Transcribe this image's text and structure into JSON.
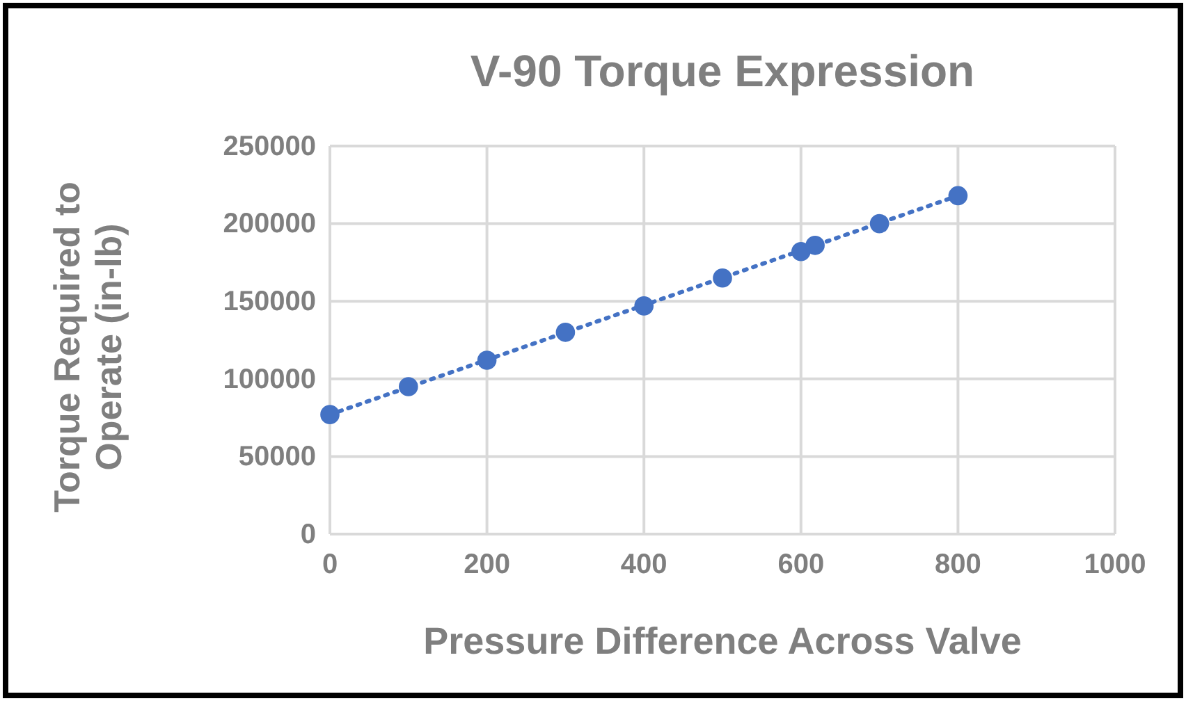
{
  "chart_data": {
    "type": "scatter",
    "title": "V-90 Torque Expression",
    "xlabel": "Pressure Difference Across Valve",
    "ylabel": "Torque Required to Operate (in-lb)",
    "x": [
      0,
      100,
      200,
      300,
      400,
      500,
      600,
      618,
      700,
      800
    ],
    "series": [
      {
        "color": "#4472c4",
        "marker": "circle",
        "values": [
          77000,
          95000,
          112000,
          130000,
          147000,
          165000,
          182000,
          186000,
          200000,
          218000
        ]
      },
      {
        "type": "line",
        "color": "#4472c4",
        "line_style": "dotted",
        "x": [
          0,
          800
        ],
        "values": [
          77000,
          218000
        ]
      }
    ],
    "xlim": [
      0,
      1000
    ],
    "xticks": [
      0,
      200,
      400,
      600,
      800,
      1000
    ],
    "ylim": [
      0,
      250000
    ],
    "yticks": [
      0,
      50000,
      100000,
      150000,
      200000,
      250000
    ],
    "grid": true
  }
}
